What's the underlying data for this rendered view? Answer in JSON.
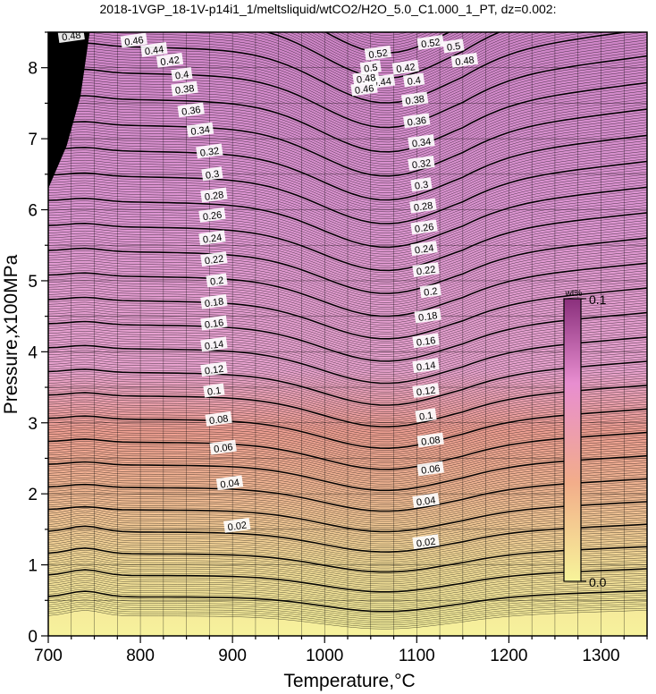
{
  "chart_data": {
    "type": "heatmap",
    "title": "2018-1VGP_18-1V-p14i1_1/meltsliquid/wtCO2/H2O_5.0_C1.000_1_PT, dz=0.002:",
    "xlabel": "Temperature,°C",
    "ylabel": "Pressure,x100MPa",
    "xlim": [
      700,
      1350
    ],
    "ylim": [
      0,
      8.5
    ],
    "xticks": [
      700,
      800,
      900,
      1000,
      1100,
      1200,
      1300
    ],
    "yticks": [
      0,
      1,
      2,
      3,
      4,
      5,
      6,
      7,
      8
    ],
    "grid": true,
    "colorbar": {
      "unit": "wt%",
      "min_label": "0.0",
      "max_label": "0.1",
      "colors": [
        "#f7f49a",
        "#f2ad8a",
        "#e88ed0",
        "#7d2a6e"
      ]
    },
    "contour_interval": 0.002,
    "labeled_contours": [
      "0.02",
      "0.04",
      "0.06",
      "0.08",
      "0.1",
      "0.12",
      "0.14",
      "0.16",
      "0.18",
      "0.2",
      "0.22",
      "0.24",
      "0.26",
      "0.28",
      "0.3",
      "0.32",
      "0.34",
      "0.36",
      "0.38",
      "0.4",
      "0.42",
      "0.44",
      "0.46",
      "0.48",
      "0.5",
      "0.52"
    ],
    "contour_label_positions": {
      "left_column": [
        {
          "label": "0.02",
          "T": 905,
          "P": 1.55
        },
        {
          "label": "0.04",
          "T": 897,
          "P": 2.15
        },
        {
          "label": "0.06",
          "T": 890,
          "P": 2.65
        },
        {
          "label": "0.08",
          "T": 885,
          "P": 3.05
        },
        {
          "label": "0.1",
          "T": 880,
          "P": 3.45
        },
        {
          "label": "0.12",
          "T": 880,
          "P": 3.75
        },
        {
          "label": "0.14",
          "T": 880,
          "P": 4.1
        },
        {
          "label": "0.16",
          "T": 880,
          "P": 4.4
        },
        {
          "label": "0.18",
          "T": 880,
          "P": 4.7
        },
        {
          "label": "0.2",
          "T": 883,
          "P": 5.0
        },
        {
          "label": "0.22",
          "T": 880,
          "P": 5.3
        },
        {
          "label": "0.24",
          "T": 878,
          "P": 5.6
        },
        {
          "label": "0.26",
          "T": 878,
          "P": 5.92
        },
        {
          "label": "0.28",
          "T": 880,
          "P": 6.2
        },
        {
          "label": "0.3",
          "T": 878,
          "P": 6.5
        },
        {
          "label": "0.32",
          "T": 875,
          "P": 6.82
        },
        {
          "label": "0.34",
          "T": 865,
          "P": 7.12
        },
        {
          "label": "0.36",
          "T": 855,
          "P": 7.4
        },
        {
          "label": "0.38",
          "T": 848,
          "P": 7.7
        },
        {
          "label": "0.4",
          "T": 845,
          "P": 7.9
        },
        {
          "label": "0.42",
          "T": 832,
          "P": 8.1
        },
        {
          "label": "0.44",
          "T": 815,
          "P": 8.25
        },
        {
          "label": "0.46",
          "T": 793,
          "P": 8.38
        },
        {
          "label": "0.48",
          "T": 725,
          "P": 8.45
        }
      ],
      "right_column": [
        {
          "label": "0.02",
          "T": 1110,
          "P": 1.32
        },
        {
          "label": "0.04",
          "T": 1110,
          "P": 1.9
        },
        {
          "label": "0.06",
          "T": 1115,
          "P": 2.35
        },
        {
          "label": "0.08",
          "T": 1115,
          "P": 2.75
        },
        {
          "label": "0.1",
          "T": 1110,
          "P": 3.1
        },
        {
          "label": "0.12",
          "T": 1110,
          "P": 3.45
        },
        {
          "label": "0.14",
          "T": 1110,
          "P": 3.8
        },
        {
          "label": "0.16",
          "T": 1110,
          "P": 4.15
        },
        {
          "label": "0.18",
          "T": 1112,
          "P": 4.5
        },
        {
          "label": "0.2",
          "T": 1115,
          "P": 4.85
        },
        {
          "label": "0.22",
          "T": 1110,
          "P": 5.15
        },
        {
          "label": "0.24",
          "T": 1108,
          "P": 5.45
        },
        {
          "label": "0.26",
          "T": 1108,
          "P": 5.75
        },
        {
          "label": "0.28",
          "T": 1107,
          "P": 6.05
        },
        {
          "label": "0.3",
          "T": 1105,
          "P": 6.35
        },
        {
          "label": "0.32",
          "T": 1105,
          "P": 6.65
        },
        {
          "label": "0.34",
          "T": 1105,
          "P": 6.95
        },
        {
          "label": "0.36",
          "T": 1100,
          "P": 7.25
        },
        {
          "label": "0.38",
          "T": 1098,
          "P": 7.55
        },
        {
          "label": "0.4",
          "T": 1097,
          "P": 7.82
        },
        {
          "label": "0.42",
          "T": 1088,
          "P": 8.0
        },
        {
          "label": "0.44",
          "T": 1062,
          "P": 7.8
        },
        {
          "label": "0.46",
          "T": 1043,
          "P": 7.7
        },
        {
          "label": "0.48",
          "T": 1045,
          "P": 7.85
        },
        {
          "label": "0.5",
          "T": 1050,
          "P": 8.0
        },
        {
          "label": "0.52",
          "T": 1058,
          "P": 8.2
        }
      ],
      "top_right": [
        {
          "label": "0.52",
          "T": 1115,
          "P": 8.35
        },
        {
          "label": "0.5",
          "T": 1140,
          "P": 8.3
        },
        {
          "label": "0.48",
          "T": 1152,
          "P": 8.1
        }
      ]
    }
  }
}
